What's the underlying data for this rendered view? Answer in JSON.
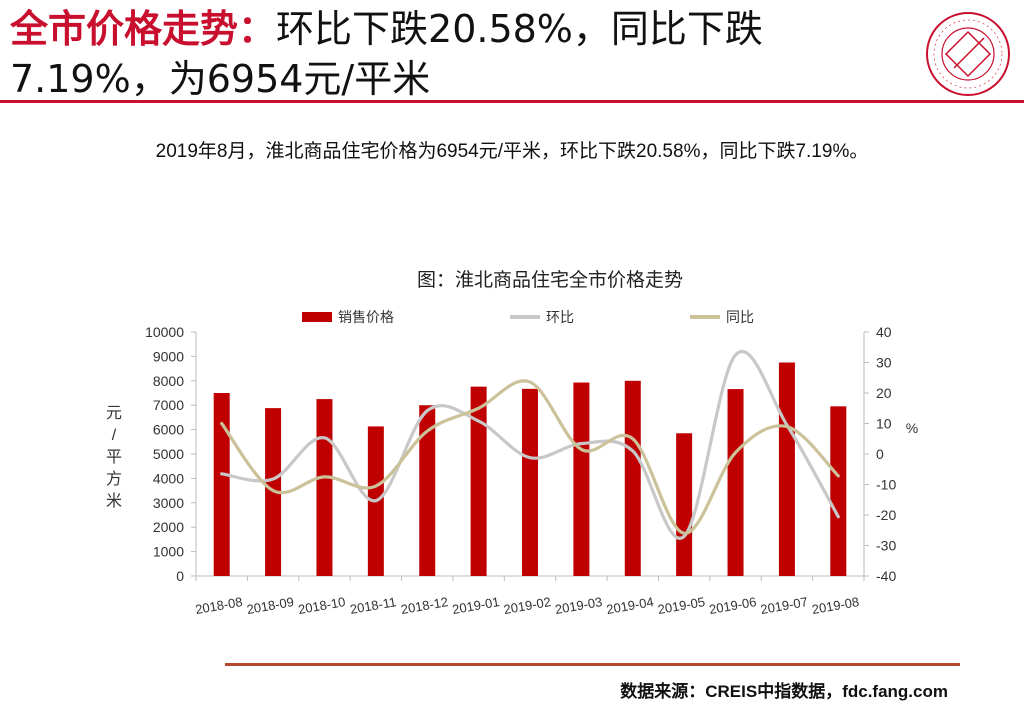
{
  "header": {
    "title_highlight": "全市价格走势：",
    "title_rest": "环比下跌20.58%，同比下跌7.19%，为6954元/平米",
    "logo_icon": "china-index-academy-seal-icon",
    "accent_color": "#c8102e"
  },
  "summary": "2019年8月，淮北商品住宅价格为6954元/平米，环比下跌20.58%，同比下跌7.19%。",
  "chart_data": {
    "type": "bar",
    "title": "图：淮北商品住宅全市价格走势",
    "categories": [
      "2018-08",
      "2018-09",
      "2018-10",
      "2018-11",
      "2018-12",
      "2019-01",
      "2019-02",
      "2019-03",
      "2019-04",
      "2019-05",
      "2019-06",
      "2019-07",
      "2019-08"
    ],
    "series": [
      {
        "name": "销售价格",
        "type": "bar",
        "axis": "left",
        "color": "#c00000",
        "values": [
          7500,
          6880,
          7250,
          6130,
          7000,
          7760,
          7670,
          7930,
          8000,
          5850,
          7660,
          8750,
          6954
        ]
      },
      {
        "name": "环比",
        "type": "line",
        "axis": "right",
        "color": "#c8c8c8",
        "values": [
          -6.5,
          -8.2,
          5.3,
          -15.3,
          14.2,
          10.8,
          -1.2,
          3.4,
          1.0,
          -27.0,
          32.5,
          9.5,
          -20.58
        ]
      },
      {
        "name": "同比",
        "type": "line",
        "axis": "right",
        "color": "#cbc29a",
        "values": [
          10.0,
          -12.0,
          -7.5,
          -10.5,
          7.5,
          15.0,
          23.6,
          1.5,
          5.0,
          -26.0,
          0.5,
          9.0,
          -7.19
        ]
      }
    ],
    "ylabel": "元/平方米",
    "y2label": "%",
    "ylim": [
      0,
      10000
    ],
    "y2lim": [
      -40,
      40
    ],
    "yticks": [
      "0",
      "1000",
      "2000",
      "3000",
      "4000",
      "5000",
      "6000",
      "7000",
      "8000",
      "9000",
      "10000"
    ],
    "y2ticks": [
      "-40",
      "-30",
      "-20",
      "-10",
      "0",
      "10",
      "20",
      "30",
      "40"
    ],
    "legend": "top",
    "grid": false
  },
  "footer": {
    "source": "数据来源：CREIS中指数据，fdc.fang.com",
    "rule_color": "#b4472f"
  }
}
